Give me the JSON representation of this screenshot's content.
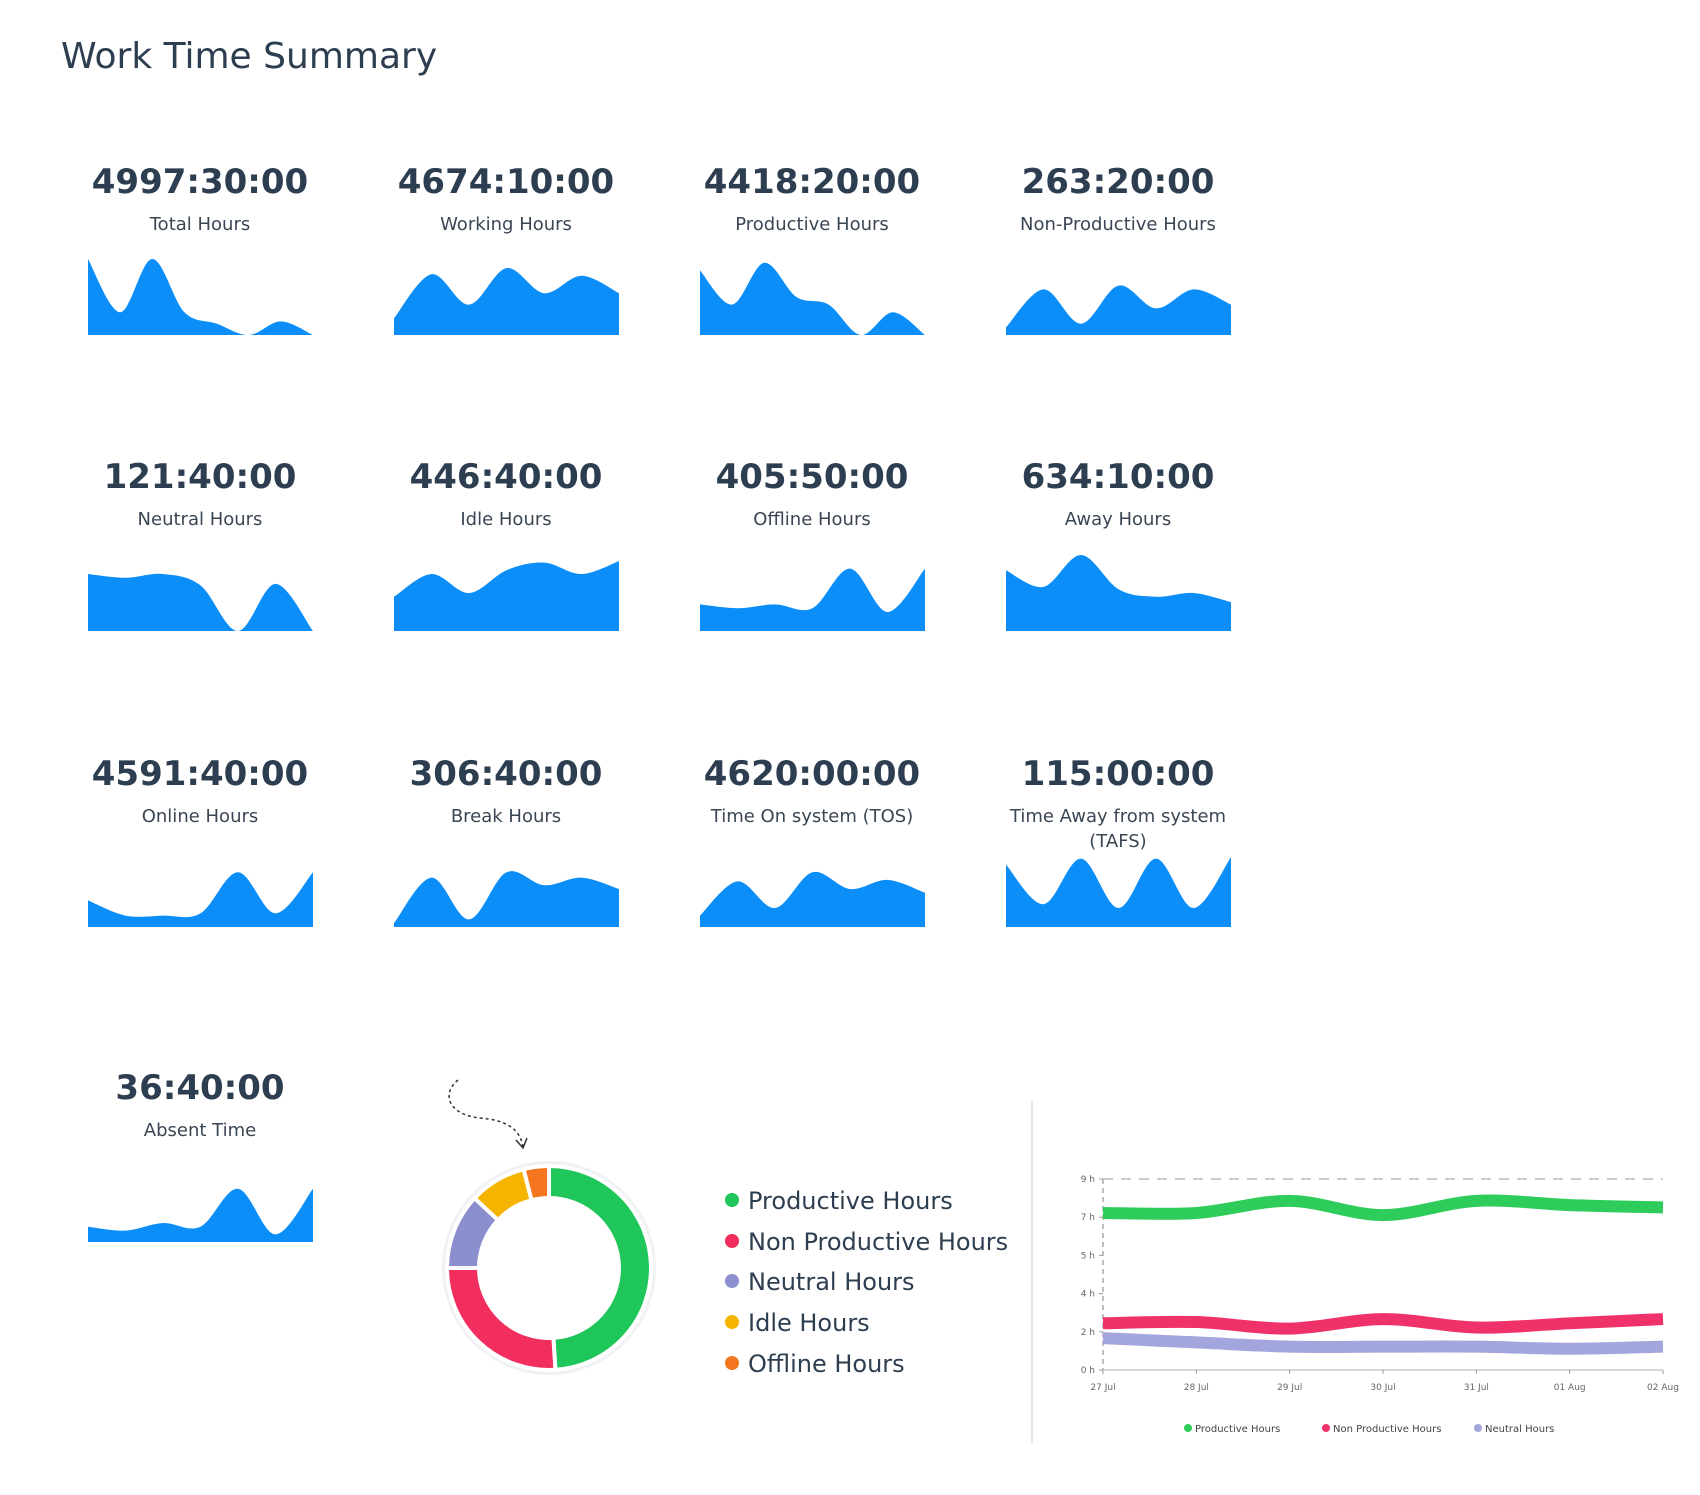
{
  "title": "Work Time Summary",
  "cards": [
    {
      "value": "4997:30:00",
      "label": "Total Hours",
      "trend": [
        100,
        30,
        100,
        30,
        15,
        0,
        18,
        0
      ]
    },
    {
      "value": "4674:10:00",
      "label": "Working Hours",
      "trend": [
        22,
        80,
        40,
        88,
        55,
        78,
        55
      ]
    },
    {
      "value": "4418:20:00",
      "label": "Productive Hours",
      "trend": [
        85,
        40,
        95,
        50,
        40,
        0,
        30,
        0
      ]
    },
    {
      "value": "263:20:00",
      "label": "Non-Productive Hours",
      "trend": [
        10,
        60,
        15,
        65,
        35,
        60,
        40
      ]
    },
    {
      "value": "121:40:00",
      "label": "Neutral Hours",
      "trend": [
        75,
        70,
        75,
        60,
        0,
        62,
        0
      ]
    },
    {
      "value": "446:40:00",
      "label": "Idle Hours",
      "trend": [
        45,
        75,
        50,
        80,
        90,
        75,
        92
      ]
    },
    {
      "value": "405:50:00",
      "label": "Offline Hours",
      "trend": [
        35,
        30,
        35,
        30,
        82,
        25,
        82
      ]
    },
    {
      "value": "634:10:00",
      "label": "Away Hours",
      "trend": [
        80,
        58,
        100,
        55,
        45,
        50,
        38
      ]
    },
    {
      "value": "4591:40:00",
      "label": "Online Hours",
      "trend": [
        35,
        15,
        15,
        18,
        72,
        18,
        72
      ]
    },
    {
      "value": "306:40:00",
      "label": "Break Hours",
      "trend": [
        5,
        65,
        10,
        72,
        55,
        65,
        50
      ]
    },
    {
      "value": "4620:00:00",
      "label": "Time On system (TOS)",
      "trend": [
        15,
        60,
        25,
        72,
        50,
        62,
        45
      ]
    },
    {
      "value": "115:00:00",
      "label": "Time Away from system (TAFS)",
      "trend": [
        82,
        30,
        90,
        25,
        90,
        25,
        92
      ]
    },
    {
      "value": "36:40:00",
      "label": "Absent Time",
      "trend": [
        20,
        15,
        25,
        20,
        70,
        10,
        70
      ]
    }
  ],
  "chart_data": [
    {
      "type": "pie",
      "categories": [
        "Productive Hours",
        "Non Productive Hours",
        "Neutral Hours",
        "Idle Hours",
        "Offline Hours"
      ],
      "values": [
        49,
        26,
        12,
        9,
        4
      ],
      "colors": [
        "#1fc75a",
        "#f22e5f",
        "#8c8fce",
        "#f5b400",
        "#f5761f"
      ]
    },
    {
      "type": "line",
      "categories": [
        "27 Jul",
        "28 Jul",
        "29 Jul",
        "30 Jul",
        "31 Jul",
        "01 Aug",
        "02 Aug"
      ],
      "series": [
        {
          "name": "Productive Hours",
          "color": "#2ecc5a",
          "values": [
            7.4,
            7.4,
            7.97,
            7.3,
            7.97,
            7.77,
            7.66
          ]
        },
        {
          "name": "Non Productive Hours",
          "color": "#f0326a",
          "values": [
            2.2,
            2.26,
            1.95,
            2.4,
            2.0,
            2.2,
            2.4
          ]
        },
        {
          "name": "Neutral Hours",
          "color": "#a3a6dc",
          "values": [
            1.5,
            1.3,
            1.1,
            1.1,
            1.1,
            1.0,
            1.1
          ]
        }
      ],
      "ylim": [
        0,
        9
      ],
      "yticks": [
        {
          "value": 0,
          "label": "0 h"
        },
        {
          "value": 1.8,
          "label": "2 h"
        },
        {
          "value": 3.6,
          "label": "4 h"
        },
        {
          "value": 5.4,
          "label": "5 h"
        },
        {
          "value": 7.2,
          "label": "7 h"
        },
        {
          "value": 9,
          "label": "9 h"
        }
      ]
    }
  ]
}
